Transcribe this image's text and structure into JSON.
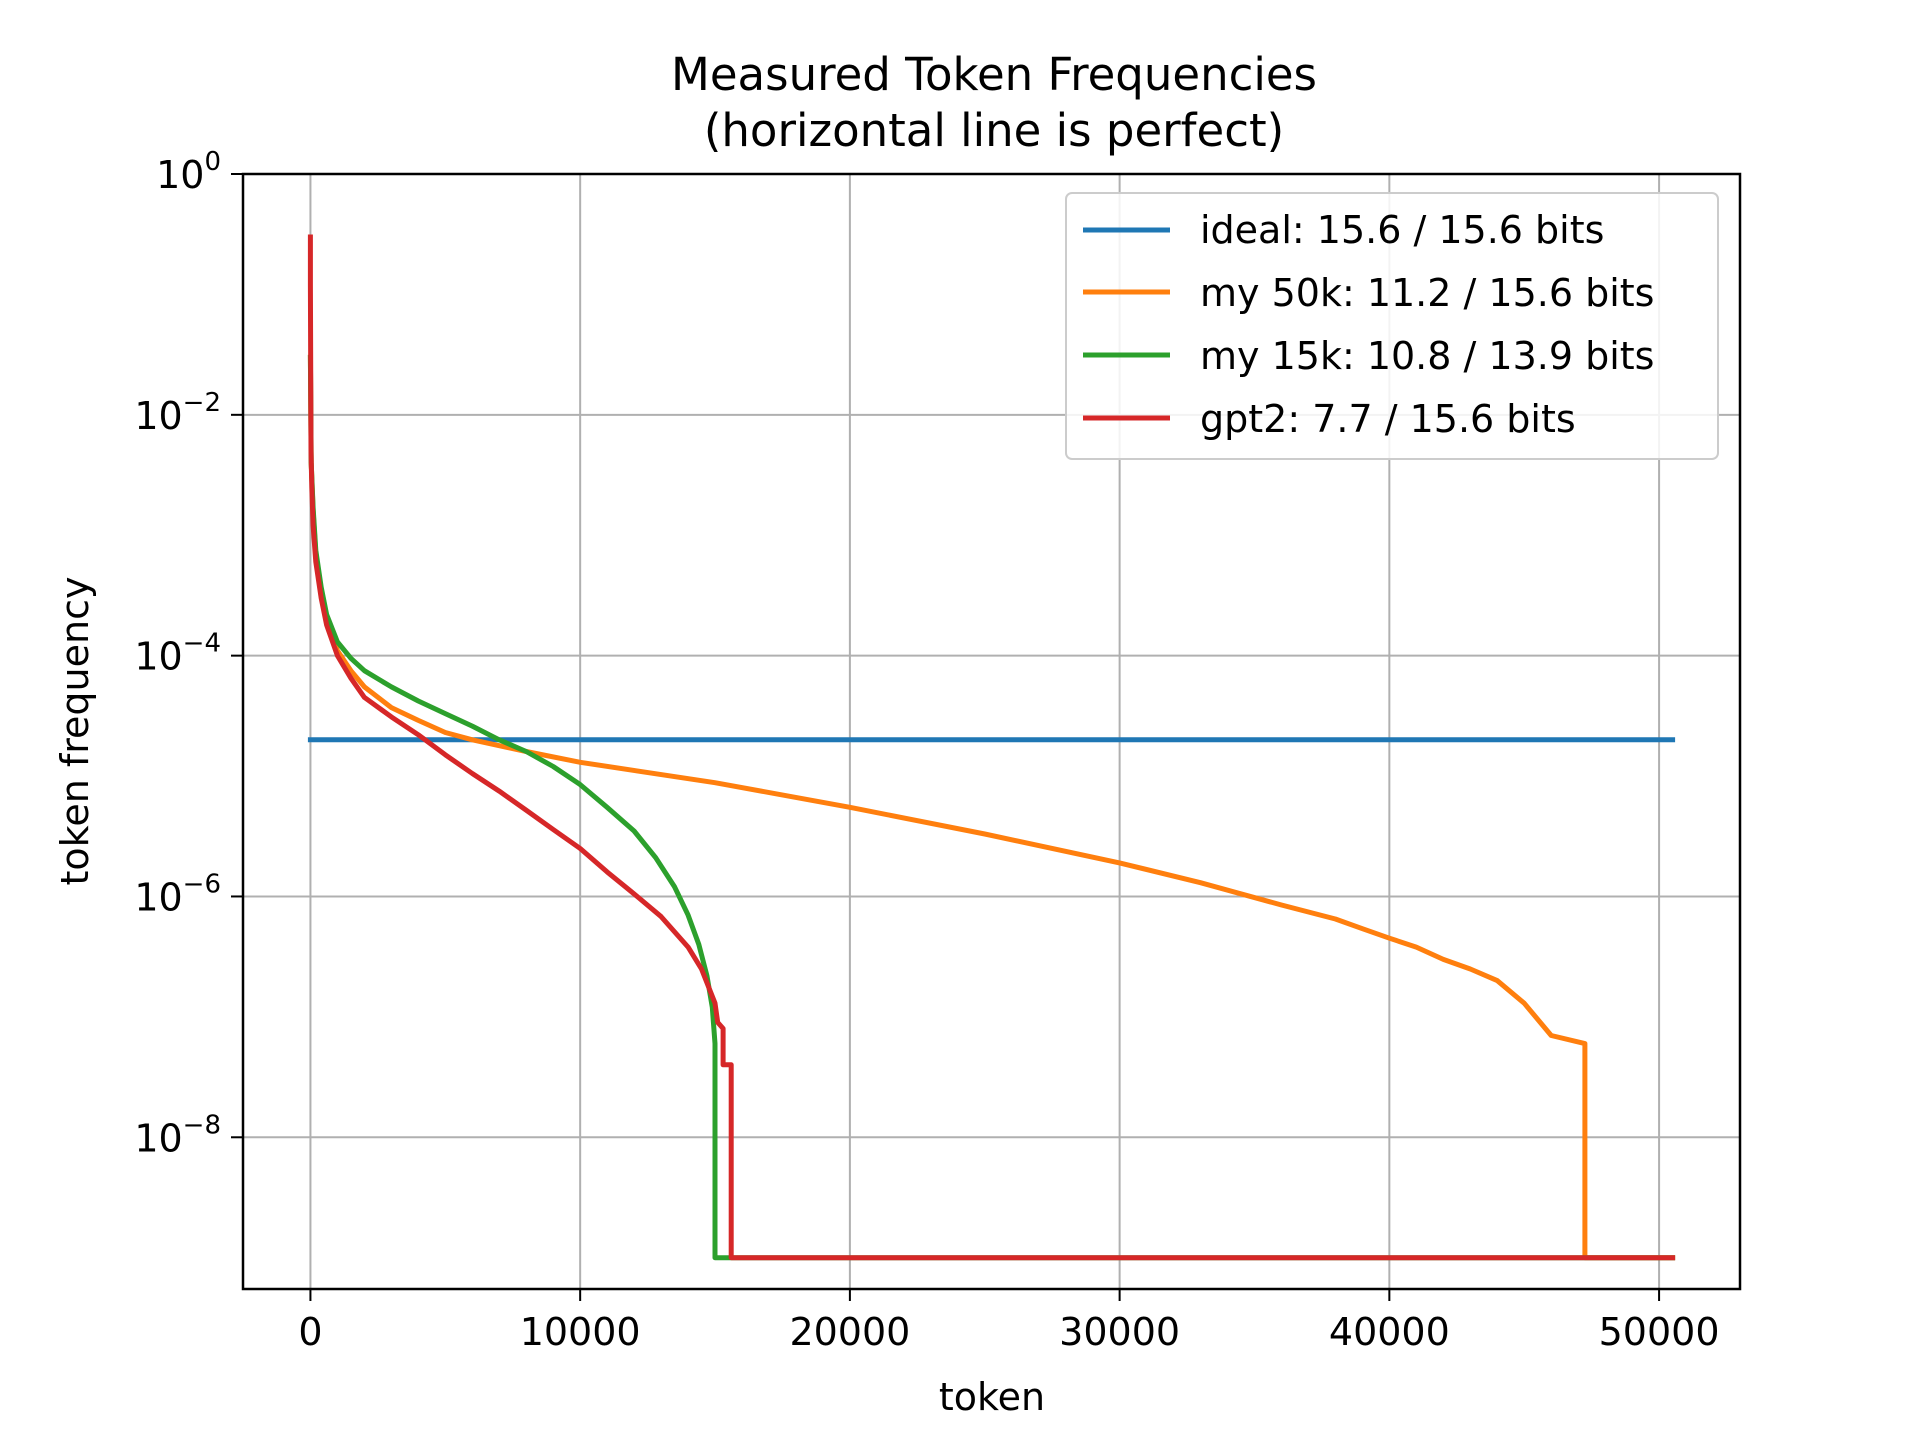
{
  "chart_data": {
    "type": "line",
    "title": "Measured Token Frequencies",
    "subtitle": "(horizontal line is perfect)",
    "xlabel": "token",
    "ylabel": "token frequency",
    "xlim": [
      -2500,
      53000
    ],
    "ylim_log10": [
      -9.26,
      0
    ],
    "yscale": "log",
    "grid": true,
    "legend_position": "top-right",
    "x_ticks": [
      0,
      10000,
      20000,
      30000,
      40000,
      50000
    ],
    "x_tick_labels": [
      "0",
      "10000",
      "20000",
      "30000",
      "40000",
      "50000"
    ],
    "y_ticks": [
      {
        "base": "10",
        "exp": "0",
        "value": 1
      },
      {
        "base": "10",
        "exp": "−2",
        "value": 0.01
      },
      {
        "base": "10",
        "exp": "−4",
        "value": 0.0001
      },
      {
        "base": "10",
        "exp": "−6",
        "value": 1e-06
      },
      {
        "base": "10",
        "exp": "−8",
        "value": 1e-08
      }
    ],
    "series": [
      {
        "name": "ideal: 15.6 / 15.6 bits",
        "color": "#1f77b4",
        "x": [
          0,
          50500
        ],
        "y": [
          2e-05,
          2e-05
        ]
      },
      {
        "name": "my 50k: 11.2 / 15.6 bits",
        "color": "#ff7f0e",
        "x": [
          0,
          30,
          100,
          200,
          400,
          600,
          1000,
          1500,
          2000,
          3000,
          4000,
          5000,
          6000,
          8000,
          10000,
          15000,
          20000,
          25000,
          30000,
          33000,
          36000,
          38000,
          39000,
          40000,
          41000,
          42000,
          43000,
          44000,
          45000,
          46000,
          47250,
          47250,
          50500
        ],
        "y": [
          0.03,
          0.004,
          0.0016,
          0.0007,
          0.00035,
          0.0002,
          0.00011,
          7.5e-05,
          5.5e-05,
          3.7e-05,
          2.9e-05,
          2.3e-05,
          2e-05,
          1.6e-05,
          1.3e-05,
          8.8e-06,
          5.5e-06,
          3.3e-06,
          1.9e-06,
          1.3e-06,
          8.5e-07,
          6.5e-07,
          5.4e-07,
          4.5e-07,
          3.8e-07,
          3e-07,
          2.5e-07,
          2e-07,
          1.3e-07,
          7e-08,
          6e-08,
          1e-09,
          1e-09
        ]
      },
      {
        "name": "my 15k: 10.8 / 13.9 bits",
        "color": "#2ca02c",
        "x": [
          0,
          30,
          100,
          200,
          400,
          600,
          1000,
          1500,
          2000,
          3000,
          4000,
          5000,
          6000,
          7000,
          8000,
          9000,
          10000,
          11000,
          12000,
          12800,
          13500,
          14000,
          14400,
          14700,
          14900,
          15000,
          15000,
          15300,
          50500
        ],
        "y": [
          0.03,
          0.004,
          0.0017,
          0.00075,
          0.00037,
          0.00022,
          0.00013,
          9.5e-05,
          7.5e-05,
          5.5e-05,
          4.2e-05,
          3.3e-05,
          2.6e-05,
          2e-05,
          1.6e-05,
          1.2e-05,
          8.5e-06,
          5.5e-06,
          3.5e-06,
          2.1e-06,
          1.2e-06,
          7e-07,
          4e-07,
          2.2e-07,
          1.2e-07,
          6e-08,
          1e-09,
          1e-09,
          1e-09
        ]
      },
      {
        "name": "gpt2: 7.7 / 15.6 bits",
        "color": "#d62728",
        "x": [
          0,
          0,
          20,
          50,
          100,
          200,
          400,
          600,
          1000,
          1500,
          2000,
          3000,
          4000,
          5000,
          6000,
          7000,
          8000,
          9000,
          10000,
          11000,
          12000,
          13000,
          14000,
          14500,
          15000,
          15100,
          15300,
          15300,
          15600,
          15600,
          50500
        ],
        "y": [
          0.3,
          0.12,
          0.005,
          0.0025,
          0.0012,
          0.0006,
          0.0003,
          0.00018,
          0.0001,
          6.5e-05,
          4.5e-05,
          3.1e-05,
          2.2e-05,
          1.5e-05,
          1.05e-05,
          7.5e-06,
          5.2e-06,
          3.6e-06,
          2.5e-06,
          1.6e-06,
          1.05e-06,
          6.8e-07,
          3.8e-07,
          2.5e-07,
          1.3e-07,
          9e-08,
          8e-08,
          4e-08,
          4e-08,
          1e-09,
          1e-09
        ]
      }
    ]
  }
}
